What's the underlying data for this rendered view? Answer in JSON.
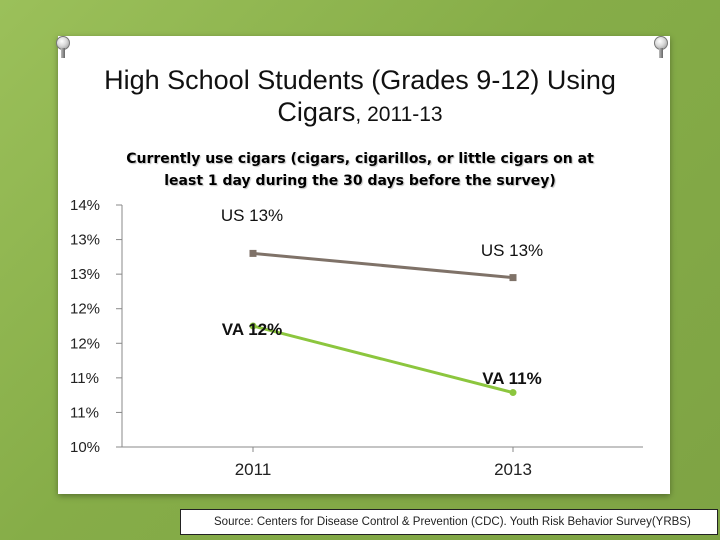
{
  "chart_data": {
    "type": "line",
    "title": "High School Students (Grades 9-12) Using Cigars, 2011-13",
    "title_main": "High School Students (Grades 9-12) Using",
    "title_word": "Cigars",
    "title_years": ", 2011-13",
    "subtitle_line1": "Currently use cigars (cigars, cigarillos, or little cigars on at",
    "subtitle_line2": "least 1 day during the 30 days before the survey)",
    "categories": [
      "2011",
      "2013"
    ],
    "y_ticks": [
      "14%",
      "13%",
      "13%",
      "12%",
      "12%",
      "11%",
      "11%",
      "10%"
    ],
    "ylim": [
      10,
      14
    ],
    "grid": false,
    "series": [
      {
        "name": "US",
        "values": [
          13.2,
          12.8
        ],
        "labels": [
          "US  13%",
          "US  13%"
        ],
        "color": "#7f7268"
      },
      {
        "name": "VA",
        "values": [
          12.0,
          10.9
        ],
        "labels": [
          "VA  12%",
          "VA  11%"
        ],
        "color": "#8cc63e"
      }
    ]
  },
  "source": "Source: Centers for Disease Control & Prevention (CDC). Youth Risk Behavior Survey(YRBS)"
}
